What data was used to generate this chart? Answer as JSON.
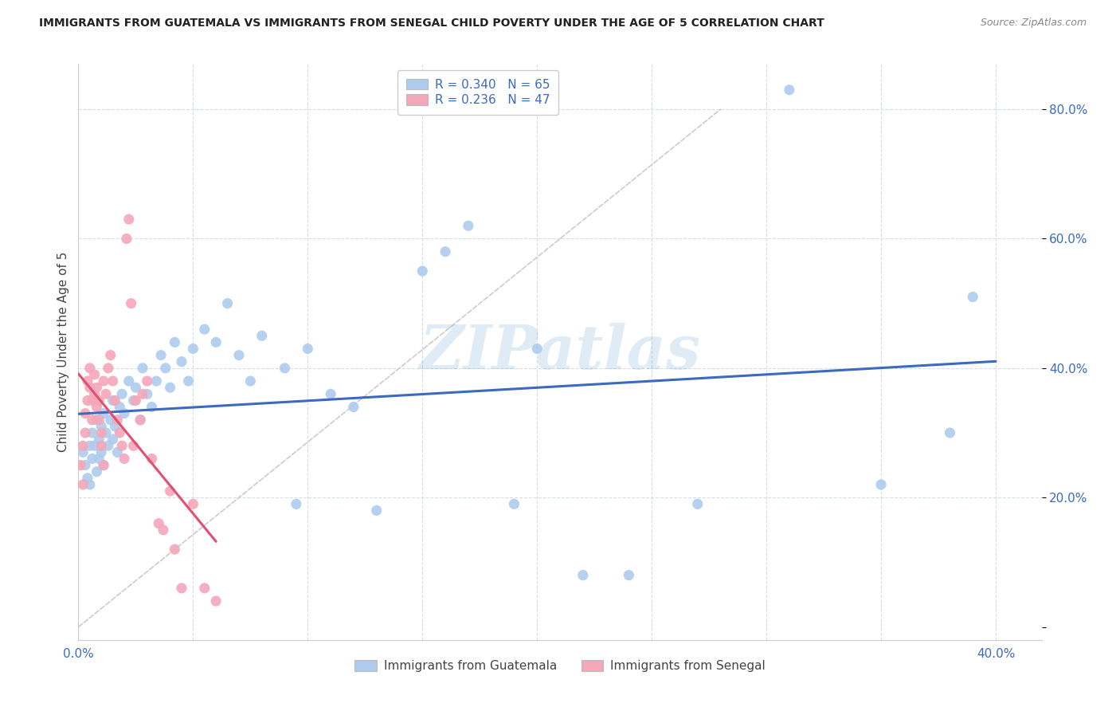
{
  "title": "IMMIGRANTS FROM GUATEMALA VS IMMIGRANTS FROM SENEGAL CHILD POVERTY UNDER THE AGE OF 5 CORRELATION CHART",
  "source": "Source: ZipAtlas.com",
  "ylabel": "Child Poverty Under the Age of 5",
  "xlim": [
    0.0,
    0.42
  ],
  "ylim": [
    -0.02,
    0.87
  ],
  "xtick_vals": [
    0.0,
    0.05,
    0.1,
    0.15,
    0.2,
    0.25,
    0.3,
    0.35,
    0.4
  ],
  "ytick_vals": [
    0.0,
    0.2,
    0.4,
    0.6,
    0.8
  ],
  "R_guatemala": 0.34,
  "N_guatemala": 65,
  "R_senegal": 0.236,
  "N_senegal": 47,
  "color_guatemala": "#aecbee",
  "color_senegal": "#f4a7b9",
  "line_color_guatemala": "#3b6abf",
  "line_color_senegal": "#e05070",
  "diagonal_color": "#cccccc",
  "watermark": "ZIPatlas",
  "legend_text_color": "#3b6abf",
  "tick_color": "#3b6abf",
  "background_color": "#ffffff",
  "guatemala_x": [
    0.002,
    0.003,
    0.004,
    0.005,
    0.005,
    0.006,
    0.006,
    0.007,
    0.008,
    0.008,
    0.009,
    0.009,
    0.01,
    0.01,
    0.011,
    0.011,
    0.012,
    0.013,
    0.014,
    0.015,
    0.015,
    0.016,
    0.017,
    0.018,
    0.019,
    0.02,
    0.022,
    0.024,
    0.025,
    0.027,
    0.028,
    0.03,
    0.032,
    0.034,
    0.036,
    0.038,
    0.04,
    0.042,
    0.045,
    0.048,
    0.05,
    0.055,
    0.06,
    0.065,
    0.07,
    0.075,
    0.08,
    0.09,
    0.095,
    0.1,
    0.11,
    0.12,
    0.13,
    0.15,
    0.16,
    0.17,
    0.19,
    0.2,
    0.22,
    0.24,
    0.27,
    0.31,
    0.35,
    0.38,
    0.39
  ],
  "guatemala_y": [
    0.27,
    0.25,
    0.23,
    0.28,
    0.22,
    0.26,
    0.3,
    0.28,
    0.24,
    0.32,
    0.26,
    0.29,
    0.27,
    0.31,
    0.25,
    0.33,
    0.3,
    0.28,
    0.32,
    0.29,
    0.35,
    0.31,
    0.27,
    0.34,
    0.36,
    0.33,
    0.38,
    0.35,
    0.37,
    0.32,
    0.4,
    0.36,
    0.34,
    0.38,
    0.42,
    0.4,
    0.37,
    0.44,
    0.41,
    0.38,
    0.43,
    0.46,
    0.44,
    0.5,
    0.42,
    0.38,
    0.45,
    0.4,
    0.19,
    0.43,
    0.36,
    0.34,
    0.18,
    0.55,
    0.58,
    0.62,
    0.19,
    0.43,
    0.08,
    0.08,
    0.19,
    0.83,
    0.22,
    0.3,
    0.51
  ],
  "senegal_x": [
    0.001,
    0.002,
    0.002,
    0.003,
    0.003,
    0.004,
    0.004,
    0.005,
    0.005,
    0.006,
    0.006,
    0.007,
    0.007,
    0.008,
    0.008,
    0.009,
    0.009,
    0.01,
    0.01,
    0.011,
    0.011,
    0.012,
    0.013,
    0.014,
    0.015,
    0.016,
    0.017,
    0.018,
    0.019,
    0.02,
    0.021,
    0.022,
    0.023,
    0.024,
    0.025,
    0.027,
    0.028,
    0.03,
    0.032,
    0.035,
    0.037,
    0.04,
    0.042,
    0.045,
    0.05,
    0.055,
    0.06
  ],
  "senegal_y": [
    0.25,
    0.28,
    0.22,
    0.3,
    0.33,
    0.35,
    0.38,
    0.37,
    0.4,
    0.35,
    0.32,
    0.36,
    0.39,
    0.34,
    0.37,
    0.32,
    0.35,
    0.3,
    0.28,
    0.25,
    0.38,
    0.36,
    0.4,
    0.42,
    0.38,
    0.35,
    0.32,
    0.3,
    0.28,
    0.26,
    0.6,
    0.63,
    0.5,
    0.28,
    0.35,
    0.32,
    0.36,
    0.38,
    0.26,
    0.16,
    0.15,
    0.21,
    0.12,
    0.06,
    0.19,
    0.06,
    0.04
  ]
}
